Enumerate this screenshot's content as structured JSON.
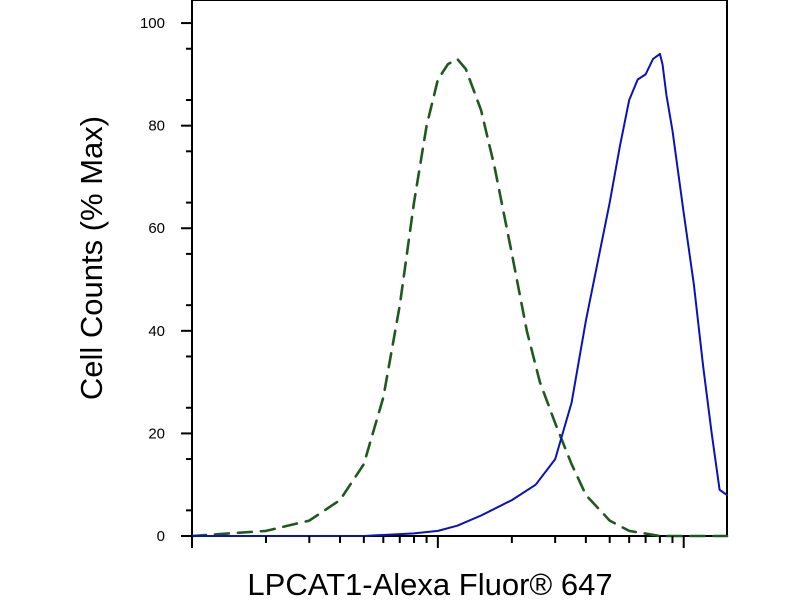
{
  "chart_data": {
    "type": "line",
    "title": "",
    "xlabel": "LPCAT1-Alexa Fluor® 647",
    "ylabel": "Cell Counts (% Max)",
    "xscale": "log",
    "xlim": [
      0.01,
      1.5
    ],
    "ylim": [
      0,
      100
    ],
    "y_ticks": [
      0,
      20,
      40,
      60,
      80,
      100
    ],
    "y_tick_labels": [
      "0",
      "20",
      "40",
      "60",
      "80",
      "100"
    ],
    "x_major_ticks": [
      0.01,
      0.1,
      1
    ],
    "x_minor_ticks": [
      0.02,
      0.03,
      0.04,
      0.05,
      0.06,
      0.07,
      0.08,
      0.09,
      0.2,
      0.3,
      0.4,
      0.5,
      0.6,
      0.7,
      0.8,
      0.9
    ],
    "grid": false,
    "legend": "none",
    "series": [
      {
        "style": "dashed",
        "color": "#1e5a1e",
        "x": [
          0.01,
          0.02,
          0.03,
          0.04,
          0.05,
          0.06,
          0.07,
          0.08,
          0.09,
          0.1,
          0.11,
          0.12,
          0.13,
          0.15,
          0.17,
          0.2,
          0.23,
          0.26,
          0.3,
          0.35,
          0.4,
          0.5,
          0.6,
          0.8,
          1.0,
          1.5
        ],
        "y": [
          0,
          1,
          3,
          7,
          14,
          27,
          45,
          65,
          80,
          89,
          92,
          93,
          91,
          83,
          72,
          55,
          40,
          30,
          22,
          14,
          8,
          3,
          1,
          0,
          0,
          0
        ]
      },
      {
        "style": "solid",
        "color": "#0a14b4",
        "x": [
          0.01,
          0.05,
          0.08,
          0.1,
          0.12,
          0.15,
          0.2,
          0.25,
          0.3,
          0.35,
          0.4,
          0.5,
          0.55,
          0.6,
          0.65,
          0.7,
          0.75,
          0.8,
          0.82,
          0.85,
          0.9,
          1.0,
          1.1,
          1.2,
          1.3,
          1.4,
          1.5
        ],
        "y": [
          0,
          0,
          0.5,
          1,
          2,
          4,
          7,
          10,
          15,
          26,
          42,
          65,
          76,
          85,
          89,
          90,
          93,
          94,
          92,
          86,
          79,
          63,
          49,
          33,
          20,
          9,
          8
        ]
      }
    ]
  }
}
